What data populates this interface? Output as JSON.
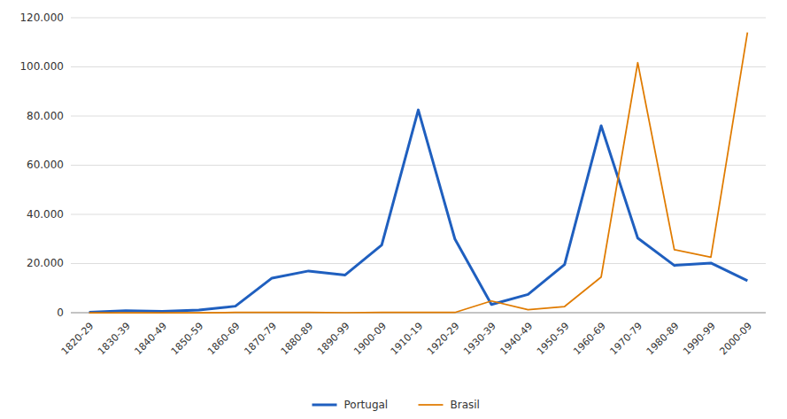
{
  "chart_data": {
    "type": "line",
    "categories": [
      "1820-29",
      "1830-39",
      "1840-49",
      "1850-59",
      "1860-69",
      "1870-79",
      "1880-89",
      "1890-99",
      "1900-09",
      "1910-19",
      "1920-29",
      "1930-39",
      "1940-49",
      "1950-59",
      "1960-69",
      "1970-79",
      "1980-89",
      "1990-99",
      "2000-09"
    ],
    "series": [
      {
        "name": "Portugal",
        "values": [
          145,
          829,
          550,
          1055,
          2658,
          14082,
          16978,
          15351,
          27508,
          82489,
          29994,
          3329,
          7423,
          19588,
          76065,
          30356,
          19231,
          20206,
          13000
        ]
      },
      {
        "name": "Brasil",
        "values": [
          0,
          0,
          0,
          0,
          100,
          100,
          100,
          0,
          100,
          100,
          100,
          4767,
          1204,
          2507,
          14500,
          101710,
          25615,
          22578,
          113975
        ]
      }
    ],
    "ylim": [
      0,
      120000
    ],
    "yticks": [
      0,
      {
        "value": 20000,
        "label": "20.000"
      },
      {
        "value": 40000,
        "label": "40.000"
      },
      {
        "value": 60000,
        "label": "60.000"
      },
      {
        "value": 80000,
        "label": "80.000"
      },
      {
        "value": 100000,
        "label": "100.000"
      },
      {
        "value": 120000,
        "label": "120.000"
      }
    ],
    "grid": true,
    "legend": "bottom"
  }
}
